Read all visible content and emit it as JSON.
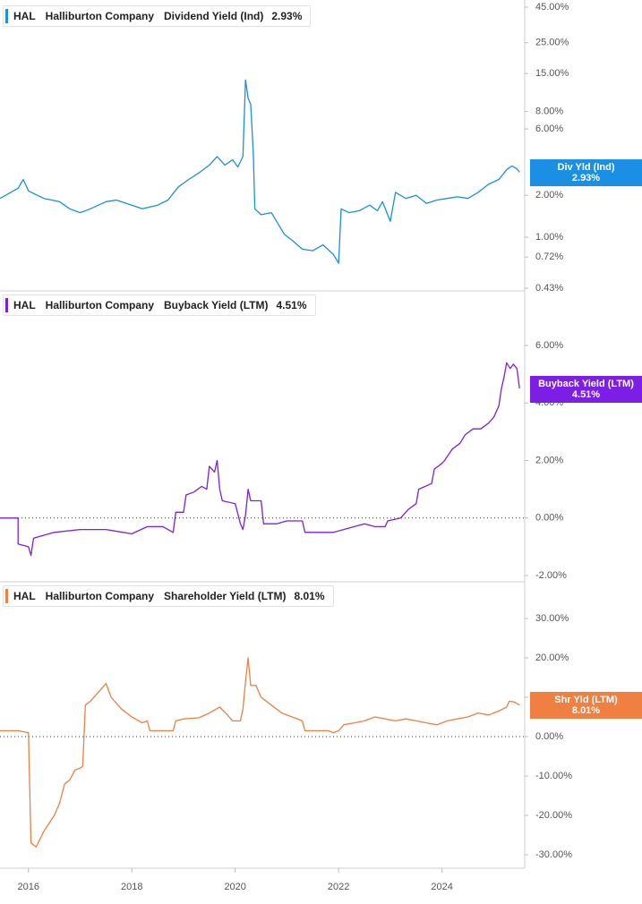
{
  "x_axis": {
    "ticks": [
      "2016",
      "2018",
      "2020",
      "2022",
      "2024"
    ],
    "tick_years": [
      2016,
      2018,
      2020,
      2022,
      2024
    ],
    "range": [
      2015.45,
      2025.6
    ]
  },
  "panels": [
    {
      "id": "div",
      "legend": {
        "ticker": "HAL",
        "company": "Halliburton Company",
        "metric": "Dividend Yield (Ind)",
        "value": "2.93%"
      },
      "tag": {
        "label": "Div Yld (Ind)",
        "value": "2.93%"
      },
      "color": "#1a8fe3",
      "y_ticks": [
        "45.00%",
        "25.00%",
        "15.00%",
        "8.00%",
        "6.00%",
        "2.00%",
        "1.00%",
        "0.72%",
        "0.43%"
      ],
      "y_tick_values": [
        45,
        25,
        15,
        8,
        6,
        2,
        1,
        0.72,
        0.43
      ]
    },
    {
      "id": "buyback",
      "legend": {
        "ticker": "HAL",
        "company": "Halliburton Company",
        "metric": "Buyback Yield (LTM)",
        "value": "4.51%"
      },
      "tag": {
        "label": "Buyback Yield (LTM)",
        "value": "4.51%"
      },
      "color": "#7c1ee6",
      "y_ticks": [
        "6.00%",
        "4.00%",
        "2.00%",
        "0.00%",
        "-2.00%"
      ],
      "y_tick_values": [
        6,
        4,
        2,
        0,
        -2
      ]
    },
    {
      "id": "shr",
      "legend": {
        "ticker": "HAL",
        "company": "Halliburton Company",
        "metric": "Shareholder Yield (LTM)",
        "value": "8.01%"
      },
      "tag": {
        "label": "Shr Yld (LTM)",
        "value": "8.01%"
      },
      "color": "#f07f42",
      "y_ticks": [
        "30.00%",
        "20.00%",
        "10.00%",
        "0.00%",
        "-10.00%",
        "-20.00%",
        "-30.00%"
      ],
      "y_tick_values": [
        30,
        20,
        10,
        0,
        -10,
        -20,
        -30
      ]
    }
  ],
  "chart_data": [
    {
      "type": "line",
      "title": "HAL Halliburton Company Dividend Yield (Ind) 2.93%",
      "y_scale": "log",
      "ylim": [
        0.43,
        45
      ],
      "xlim": [
        2015.45,
        2025.6
      ],
      "grid": false,
      "series": [
        {
          "name": "Dividend Yield (Ind)",
          "color": "#1a8fe3",
          "points": [
            [
              2015.45,
              1.9
            ],
            [
              2015.8,
              2.25
            ],
            [
              2015.9,
              2.6
            ],
            [
              2016.0,
              2.15
            ],
            [
              2016.3,
              1.9
            ],
            [
              2016.6,
              1.8
            ],
            [
              2016.8,
              1.6
            ],
            [
              2017.0,
              1.5
            ],
            [
              2017.2,
              1.6
            ],
            [
              2017.5,
              1.8
            ],
            [
              2017.7,
              1.85
            ],
            [
              2018.0,
              1.7
            ],
            [
              2018.2,
              1.6
            ],
            [
              2018.5,
              1.7
            ],
            [
              2018.7,
              1.85
            ],
            [
              2018.9,
              2.3
            ],
            [
              2019.1,
              2.6
            ],
            [
              2019.3,
              2.9
            ],
            [
              2019.5,
              3.3
            ],
            [
              2019.65,
              3.8
            ],
            [
              2019.8,
              3.3
            ],
            [
              2019.95,
              3.6
            ],
            [
              2020.05,
              3.2
            ],
            [
              2020.15,
              3.8
            ],
            [
              2020.2,
              13.5
            ],
            [
              2020.25,
              10.0
            ],
            [
              2020.3,
              9.0
            ],
            [
              2020.35,
              4.0
            ],
            [
              2020.38,
              1.6
            ],
            [
              2020.5,
              1.45
            ],
            [
              2020.7,
              1.5
            ],
            [
              2020.8,
              1.3
            ],
            [
              2020.95,
              1.05
            ],
            [
              2021.1,
              0.95
            ],
            [
              2021.3,
              0.82
            ],
            [
              2021.5,
              0.8
            ],
            [
              2021.7,
              0.88
            ],
            [
              2021.9,
              0.75
            ],
            [
              2022.0,
              0.65
            ],
            [
              2022.05,
              1.6
            ],
            [
              2022.2,
              1.5
            ],
            [
              2022.4,
              1.55
            ],
            [
              2022.6,
              1.7
            ],
            [
              2022.75,
              1.55
            ],
            [
              2022.85,
              1.8
            ],
            [
              2023.0,
              1.3
            ],
            [
              2023.1,
              2.1
            ],
            [
              2023.3,
              1.9
            ],
            [
              2023.5,
              2.0
            ],
            [
              2023.7,
              1.75
            ],
            [
              2023.9,
              1.85
            ],
            [
              2024.1,
              1.9
            ],
            [
              2024.3,
              1.95
            ],
            [
              2024.5,
              1.9
            ],
            [
              2024.7,
              2.1
            ],
            [
              2024.9,
              2.4
            ],
            [
              2025.1,
              2.6
            ],
            [
              2025.25,
              3.05
            ],
            [
              2025.35,
              3.25
            ],
            [
              2025.45,
              3.1
            ],
            [
              2025.5,
              2.93
            ]
          ]
        }
      ]
    },
    {
      "type": "line",
      "title": "HAL Halliburton Company Buyback Yield (LTM) 4.51%",
      "ylim": [
        -2,
        6
      ],
      "xlim": [
        2015.45,
        2025.6
      ],
      "grid": false,
      "zero_line": true,
      "series": [
        {
          "name": "Buyback Yield (LTM)",
          "color": "#7c1ee6",
          "points": [
            [
              2015.45,
              0.0
            ],
            [
              2015.8,
              0.0
            ],
            [
              2015.8,
              -0.9
            ],
            [
              2016.0,
              -1.0
            ],
            [
              2016.05,
              -1.3
            ],
            [
              2016.1,
              -0.7
            ],
            [
              2016.5,
              -0.5
            ],
            [
              2017.0,
              -0.4
            ],
            [
              2017.5,
              -0.4
            ],
            [
              2018.0,
              -0.55
            ],
            [
              2018.3,
              -0.3
            ],
            [
              2018.6,
              -0.3
            ],
            [
              2018.8,
              -0.5
            ],
            [
              2018.85,
              0.2
            ],
            [
              2019.0,
              0.2
            ],
            [
              2019.05,
              0.8
            ],
            [
              2019.2,
              0.9
            ],
            [
              2019.35,
              1.1
            ],
            [
              2019.45,
              1.0
            ],
            [
              2019.5,
              1.8
            ],
            [
              2019.6,
              1.6
            ],
            [
              2019.65,
              2.0
            ],
            [
              2019.7,
              1.0
            ],
            [
              2019.75,
              0.6
            ],
            [
              2020.0,
              0.5
            ],
            [
              2020.1,
              -0.2
            ],
            [
              2020.15,
              -0.4
            ],
            [
              2020.2,
              0.1
            ],
            [
              2020.25,
              1.0
            ],
            [
              2020.3,
              0.6
            ],
            [
              2020.5,
              0.6
            ],
            [
              2020.55,
              -0.2
            ],
            [
              2020.8,
              -0.2
            ],
            [
              2021.0,
              -0.1
            ],
            [
              2021.3,
              -0.1
            ],
            [
              2021.35,
              -0.5
            ],
            [
              2021.7,
              -0.5
            ],
            [
              2021.9,
              -0.5
            ],
            [
              2022.1,
              -0.4
            ],
            [
              2022.5,
              -0.2
            ],
            [
              2022.7,
              -0.3
            ],
            [
              2022.9,
              -0.3
            ],
            [
              2022.95,
              -0.1
            ],
            [
              2023.2,
              0.0
            ],
            [
              2023.3,
              0.2
            ],
            [
              2023.35,
              0.3
            ],
            [
              2023.5,
              0.5
            ],
            [
              2023.55,
              1.0
            ],
            [
              2023.8,
              1.2
            ],
            [
              2023.85,
              1.7
            ],
            [
              2024.0,
              1.9
            ],
            [
              2024.05,
              2.0
            ],
            [
              2024.2,
              2.4
            ],
            [
              2024.35,
              2.6
            ],
            [
              2024.45,
              2.9
            ],
            [
              2024.6,
              3.1
            ],
            [
              2024.75,
              3.1
            ],
            [
              2024.9,
              3.3
            ],
            [
              2025.0,
              3.5
            ],
            [
              2025.1,
              3.9
            ],
            [
              2025.15,
              4.5
            ],
            [
              2025.2,
              4.9
            ],
            [
              2025.25,
              5.4
            ],
            [
              2025.32,
              5.2
            ],
            [
              2025.38,
              5.35
            ],
            [
              2025.45,
              5.2
            ],
            [
              2025.5,
              4.51
            ]
          ]
        }
      ]
    },
    {
      "type": "line",
      "title": "HAL Halliburton Company Shareholder Yield (LTM) 8.01%",
      "ylim": [
        -30,
        30
      ],
      "xlim": [
        2015.45,
        2025.6
      ],
      "grid": false,
      "zero_line": true,
      "series": [
        {
          "name": "Shareholder Yield (LTM)",
          "color": "#f07f42",
          "points": [
            [
              2015.45,
              1.5
            ],
            [
              2015.8,
              1.5
            ],
            [
              2016.0,
              1.0
            ],
            [
              2016.05,
              -27.0
            ],
            [
              2016.15,
              -28.0
            ],
            [
              2016.3,
              -24.0
            ],
            [
              2016.5,
              -20.0
            ],
            [
              2016.6,
              -17.0
            ],
            [
              2016.7,
              -12.0
            ],
            [
              2016.8,
              -11.0
            ],
            [
              2016.9,
              -8.5
            ],
            [
              2017.0,
              -8.0
            ],
            [
              2017.05,
              -7.5
            ],
            [
              2017.1,
              8.0
            ],
            [
              2017.2,
              9.0
            ],
            [
              2017.4,
              12.0
            ],
            [
              2017.5,
              13.5
            ],
            [
              2017.6,
              10.0
            ],
            [
              2017.8,
              7.0
            ],
            [
              2018.0,
              5.0
            ],
            [
              2018.2,
              3.5
            ],
            [
              2018.3,
              4.0
            ],
            [
              2018.35,
              1.5
            ],
            [
              2018.7,
              1.5
            ],
            [
              2018.8,
              1.5
            ],
            [
              2018.85,
              4.0
            ],
            [
              2019.0,
              4.5
            ],
            [
              2019.3,
              4.8
            ],
            [
              2019.5,
              6.0
            ],
            [
              2019.7,
              7.5
            ],
            [
              2019.85,
              5.5
            ],
            [
              2019.95,
              4.0
            ],
            [
              2020.1,
              4.0
            ],
            [
              2020.15,
              7.0
            ],
            [
              2020.2,
              14.0
            ],
            [
              2020.25,
              20.0
            ],
            [
              2020.3,
              13.0
            ],
            [
              2020.4,
              13.0
            ],
            [
              2020.5,
              10.0
            ],
            [
              2020.7,
              8.0
            ],
            [
              2020.9,
              6.0
            ],
            [
              2021.1,
              5.0
            ],
            [
              2021.3,
              4.0
            ],
            [
              2021.35,
              1.5
            ],
            [
              2021.8,
              1.5
            ],
            [
              2021.9,
              1.0
            ],
            [
              2022.0,
              1.5
            ],
            [
              2022.1,
              3.0
            ],
            [
              2022.3,
              3.5
            ],
            [
              2022.5,
              4.0
            ],
            [
              2022.7,
              5.0
            ],
            [
              2022.9,
              4.5
            ],
            [
              2023.1,
              4.0
            ],
            [
              2023.3,
              4.5
            ],
            [
              2023.5,
              4.0
            ],
            [
              2023.7,
              3.5
            ],
            [
              2023.9,
              3.0
            ],
            [
              2024.1,
              4.0
            ],
            [
              2024.3,
              4.5
            ],
            [
              2024.5,
              5.0
            ],
            [
              2024.7,
              6.0
            ],
            [
              2024.9,
              5.5
            ],
            [
              2025.1,
              6.5
            ],
            [
              2025.25,
              7.5
            ],
            [
              2025.3,
              9.0
            ],
            [
              2025.4,
              8.8
            ],
            [
              2025.5,
              8.01
            ]
          ]
        }
      ]
    }
  ]
}
